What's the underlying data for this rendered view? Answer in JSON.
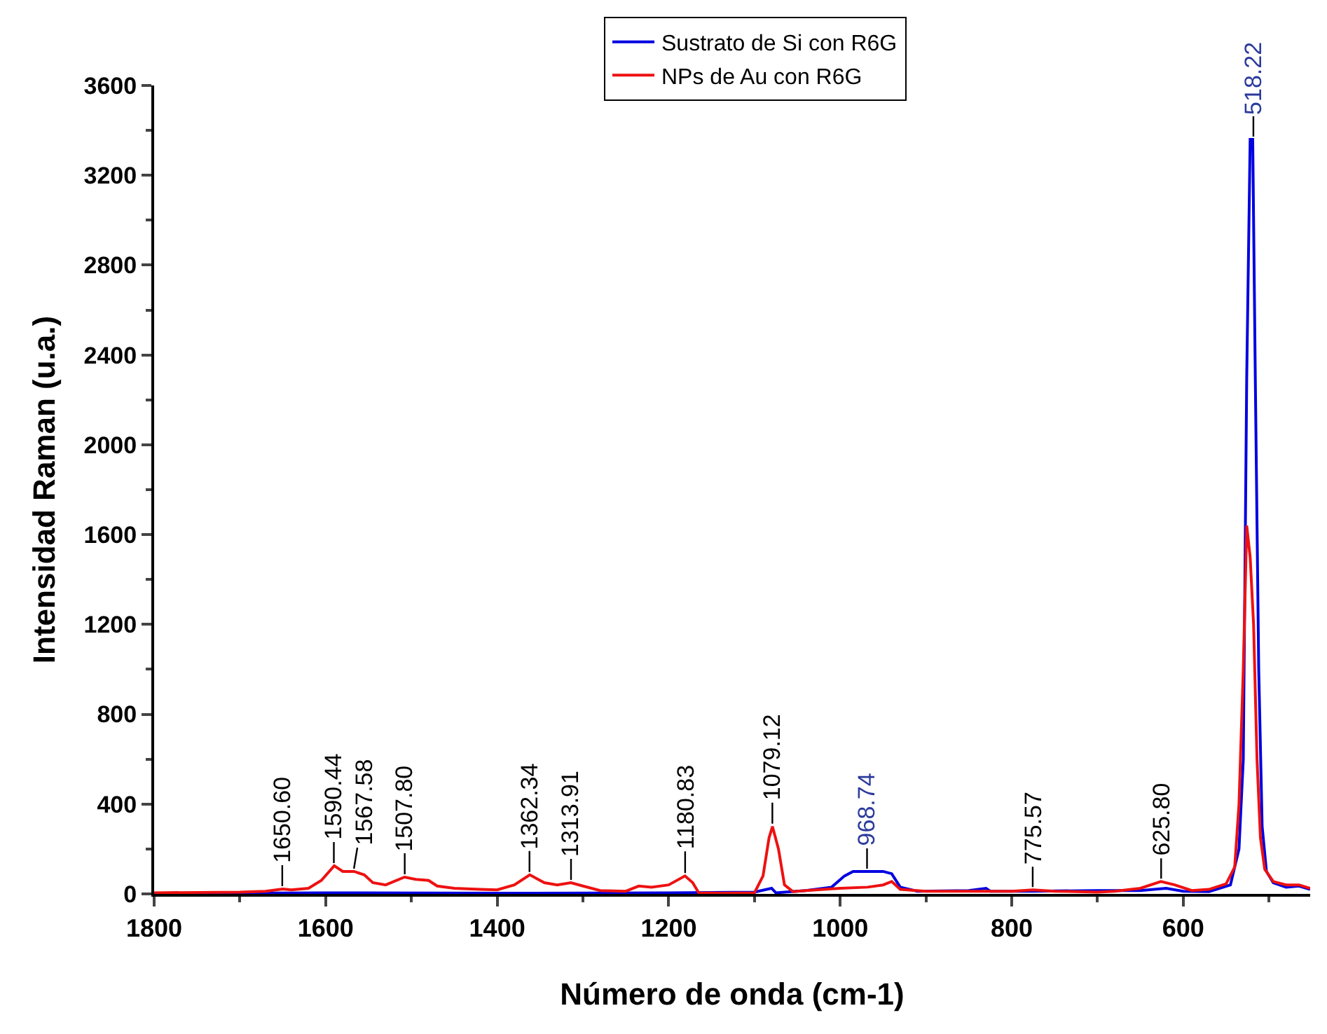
{
  "chart_data": {
    "type": "line",
    "xlabel": "Número de onda (cm-1)",
    "ylabel": "Intensidad Raman (u.a.)",
    "xlim": [
      1800,
      452
    ],
    "xticks": [
      1800,
      1600,
      1400,
      1200,
      1000,
      800,
      600
    ],
    "ylim": [
      0,
      3600
    ],
    "yticks": [
      0,
      400,
      800,
      1200,
      1600,
      2000,
      2400,
      2800,
      3200,
      3600
    ],
    "grid": false,
    "legend": "top",
    "marker": "none",
    "line_style": "solid",
    "series": [
      {
        "name": "Sustrato de Si con R6G",
        "color": "#0000e0",
        "x": [
          1800,
          1700,
          1600,
          1400,
          1200,
          1100,
          1080,
          1075,
          1040,
          1010,
          995,
          985,
          968,
          950,
          940,
          930,
          910,
          850,
          830,
          825,
          775,
          700,
          650,
          620,
          600,
          570,
          545,
          535,
          530,
          526,
          522,
          519,
          516,
          512,
          508,
          503,
          495,
          480,
          465,
          452
        ],
        "values": [
          0,
          3,
          5,
          3,
          5,
          8,
          25,
          5,
          15,
          30,
          80,
          100,
          100,
          100,
          90,
          30,
          12,
          15,
          25,
          12,
          12,
          15,
          15,
          25,
          12,
          10,
          40,
          200,
          600,
          2300,
          3360,
          3360,
          2300,
          1000,
          300,
          100,
          50,
          30,
          35,
          20
        ]
      },
      {
        "name": "NPs de Au con R6G",
        "color": "#ee1111",
        "x": [
          1800,
          1700,
          1670,
          1650,
          1640,
          1620,
          1605,
          1590,
          1580,
          1567,
          1555,
          1545,
          1530,
          1508,
          1495,
          1480,
          1470,
          1450,
          1420,
          1400,
          1380,
          1362,
          1345,
          1330,
          1314,
          1300,
          1280,
          1250,
          1235,
          1220,
          1200,
          1181,
          1172,
          1165,
          1140,
          1100,
          1090,
          1083,
          1079,
          1072,
          1065,
          1055,
          1040,
          1000,
          968,
          950,
          940,
          930,
          900,
          850,
          800,
          775,
          750,
          700,
          680,
          650,
          626,
          610,
          590,
          570,
          550,
          540,
          535,
          530,
          526,
          522,
          518,
          514,
          510,
          505,
          495,
          480,
          465,
          452
        ],
        "values": [
          5,
          8,
          12,
          22,
          18,
          25,
          60,
          125,
          100,
          100,
          85,
          50,
          40,
          75,
          65,
          60,
          35,
          25,
          20,
          18,
          40,
          85,
          50,
          40,
          50,
          35,
          15,
          12,
          35,
          30,
          40,
          80,
          50,
          5,
          3,
          5,
          80,
          250,
          300,
          200,
          40,
          10,
          15,
          25,
          30,
          40,
          55,
          20,
          12,
          12,
          12,
          18,
          12,
          8,
          12,
          25,
          55,
          40,
          15,
          20,
          45,
          120,
          400,
          1000,
          1640,
          1500,
          1200,
          600,
          250,
          110,
          55,
          40,
          40,
          25
        ]
      }
    ],
    "annotations": [
      {
        "text": "1650.60",
        "x": 1650.6,
        "y": 22
      },
      {
        "text": "1590.44",
        "x": 1590.44,
        "y": 125
      },
      {
        "text": "1567.58",
        "x": 1567.58,
        "y": 100
      },
      {
        "text": "1507.80",
        "x": 1507.8,
        "y": 75
      },
      {
        "text": "1362.34",
        "x": 1362.34,
        "y": 85
      },
      {
        "text": "1313.91",
        "x": 1313.91,
        "y": 50
      },
      {
        "text": "1180.83",
        "x": 1180.83,
        "y": 80
      },
      {
        "text": "1079.12",
        "x": 1079.12,
        "y": 300
      },
      {
        "text": "968.74",
        "x": 968.74,
        "y": 100
      },
      {
        "text": "775.57",
        "x": 775.57,
        "y": 18
      },
      {
        "text": "625.80",
        "x": 625.8,
        "y": 55
      },
      {
        "text": "518.22",
        "x": 518.22,
        "y": 3360
      }
    ]
  }
}
